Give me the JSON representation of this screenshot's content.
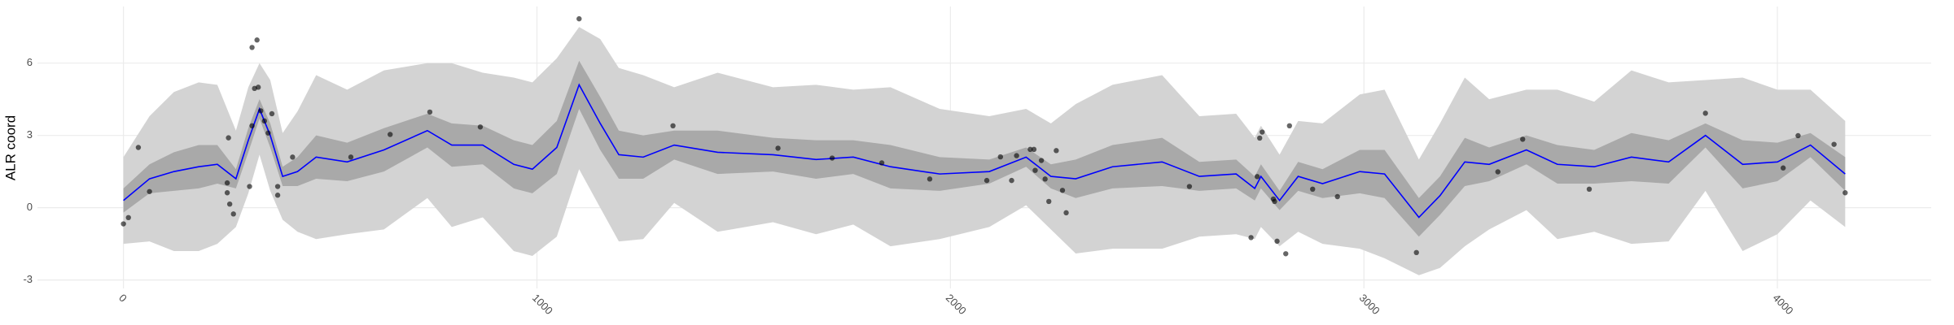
{
  "chart_data": {
    "type": "gp-fit",
    "y_label": "ALR coord",
    "xlim": [
      -208,
      4372
    ],
    "ylim": [
      -3.35,
      8.35
    ],
    "xticks": [
      0,
      1000,
      2000,
      3000,
      4000
    ],
    "yticks": [
      -3,
      0,
      3,
      6
    ],
    "grid": true,
    "x": [
      0,
      63,
      122,
      182,
      227,
      272,
      302,
      329,
      355,
      385,
      421,
      466,
      541,
      630,
      735,
      794,
      869,
      944,
      989,
      1048,
      1102,
      1153,
      1198,
      1257,
      1332,
      1437,
      1571,
      1675,
      1765,
      1855,
      1974,
      2094,
      2183,
      2243,
      2303,
      2392,
      2512,
      2602,
      2691,
      2736,
      2751,
      2796,
      2841,
      2900,
      2990,
      3050,
      3133,
      3184,
      3244,
      3303,
      3393,
      3468,
      3557,
      3647,
      3737,
      3826,
      3916,
      4000,
      4080,
      4164
    ],
    "bands": [
      {
        "color": "#d3d3d3",
        "lower": [
          -1.5,
          -1.4,
          -1.8,
          -1.8,
          -1.5,
          -0.8,
          0.6,
          2.2,
          0.7,
          -0.5,
          -1.0,
          -1.3,
          -1.1,
          -0.9,
          0.4,
          -0.8,
          -0.4,
          -1.8,
          -2.0,
          -1.2,
          1.6,
          0.0,
          -1.4,
          -1.3,
          0.2,
          -1.0,
          -0.6,
          -1.1,
          -0.7,
          -1.6,
          -1.3,
          -0.8,
          0.1,
          -0.9,
          -1.9,
          -1.7,
          -1.7,
          -1.2,
          -1.1,
          -1.3,
          -0.8,
          -1.6,
          -1.0,
          -1.5,
          -1.7,
          -2.1,
          -2.8,
          -2.5,
          -1.6,
          -0.9,
          -0.1,
          -1.3,
          -1.0,
          -1.5,
          -1.4,
          0.7,
          -1.8,
          -1.1,
          0.3,
          -0.8
        ],
        "upper": [
          2.1,
          3.8,
          4.8,
          5.2,
          5.1,
          3.2,
          5.0,
          6.0,
          5.3,
          3.1,
          4.0,
          5.5,
          4.9,
          5.7,
          6.0,
          6.0,
          5.6,
          5.4,
          5.2,
          6.2,
          7.5,
          7.0,
          5.8,
          5.5,
          5.0,
          5.6,
          5.0,
          5.1,
          4.9,
          5.0,
          4.1,
          3.8,
          4.1,
          3.5,
          4.3,
          5.1,
          5.5,
          3.8,
          3.9,
          2.9,
          3.4,
          2.2,
          3.6,
          3.5,
          4.7,
          4.9,
          2.0,
          3.5,
          5.4,
          4.5,
          4.9,
          4.9,
          4.4,
          5.7,
          5.2,
          5.3,
          5.4,
          4.9,
          4.9,
          3.6
        ]
      },
      {
        "color": "#a9a9a9",
        "lower": [
          -0.2,
          0.6,
          0.7,
          0.8,
          1.0,
          0.8,
          2.3,
          3.7,
          2.5,
          0.9,
          0.9,
          1.2,
          1.1,
          1.5,
          2.5,
          1.7,
          1.8,
          0.8,
          0.6,
          1.4,
          4.1,
          2.4,
          1.2,
          1.2,
          2.0,
          1.4,
          1.5,
          1.2,
          1.4,
          0.8,
          0.7,
          1.0,
          1.7,
          0.8,
          0.4,
          0.8,
          0.9,
          0.7,
          0.8,
          0.3,
          0.8,
          -0.1,
          0.7,
          0.4,
          0.6,
          0.4,
          -1.2,
          -0.3,
          0.9,
          1.1,
          1.8,
          1.0,
          1.0,
          1.1,
          1.0,
          2.5,
          0.8,
          1.1,
          2.1,
          0.7
        ],
        "upper": [
          0.8,
          1.8,
          2.3,
          2.6,
          2.6,
          1.6,
          3.3,
          4.5,
          3.5,
          1.7,
          2.1,
          3.0,
          2.7,
          3.3,
          3.9,
          3.5,
          3.4,
          2.8,
          2.6,
          3.6,
          6.1,
          4.6,
          3.2,
          3.0,
          3.2,
          3.2,
          2.9,
          2.8,
          2.8,
          2.6,
          2.1,
          2.0,
          2.5,
          1.8,
          2.0,
          2.6,
          2.9,
          1.9,
          2.0,
          1.3,
          1.8,
          0.7,
          1.9,
          1.6,
          2.4,
          2.4,
          0.4,
          1.3,
          2.9,
          2.5,
          3.0,
          2.6,
          2.4,
          3.1,
          2.8,
          3.5,
          2.8,
          2.7,
          3.1,
          2.1
        ]
      }
    ],
    "mean": {
      "color": "#0000ff",
      "values": [
        0.3,
        1.2,
        1.5,
        1.7,
        1.8,
        1.2,
        2.8,
        4.1,
        3.0,
        1.3,
        1.5,
        2.1,
        1.9,
        2.4,
        3.2,
        2.6,
        2.6,
        1.8,
        1.6,
        2.5,
        5.1,
        3.5,
        2.2,
        2.1,
        2.6,
        2.3,
        2.2,
        2.0,
        2.1,
        1.7,
        1.4,
        1.5,
        2.1,
        1.3,
        1.2,
        1.7,
        1.9,
        1.3,
        1.4,
        0.8,
        1.3,
        0.3,
        1.3,
        1.0,
        1.5,
        1.4,
        -0.4,
        0.5,
        1.9,
        1.8,
        2.4,
        1.8,
        1.7,
        2.1,
        1.9,
        3.0,
        1.8,
        1.9,
        2.6,
        1.4
      ]
    },
    "points": {
      "color": "#000000",
      "x": [
        0,
        12,
        36,
        63,
        251,
        251,
        254,
        257,
        266,
        305,
        311,
        311,
        317,
        323,
        326,
        332,
        341,
        350,
        359,
        373,
        373,
        409,
        550,
        645,
        741,
        863,
        1102,
        1329,
        1583,
        1714,
        1834,
        1950,
        2088,
        2121,
        2148,
        2160,
        2193,
        2202,
        2205,
        2220,
        2229,
        2238,
        2256,
        2271,
        2280,
        2578,
        2727,
        2742,
        2748,
        2754,
        2781,
        2784,
        2790,
        2811,
        2820,
        2876,
        2936,
        3127,
        3324,
        3384,
        3545,
        3826,
        4014,
        4050,
        4137,
        4164
      ],
      "y": [
        -0.67,
        -0.41,
        2.5,
        0.67,
        1.03,
        0.62,
        2.9,
        0.15,
        -0.26,
        0.88,
        3.4,
        6.65,
        4.95,
        6.96,
        5.0,
        4.02,
        3.6,
        3.1,
        3.9,
        0.88,
        0.52,
        2.1,
        2.1,
        3.04,
        3.97,
        3.35,
        7.84,
        3.4,
        2.47,
        2.06,
        1.86,
        1.19,
        1.13,
        2.11,
        1.13,
        2.16,
        2.42,
        2.42,
        1.55,
        1.96,
        1.19,
        0.26,
        2.37,
        0.72,
        -0.21,
        0.88,
        -1.24,
        1.29,
        2.89,
        3.14,
        0.36,
        0.26,
        -1.39,
        -1.91,
        3.4,
        0.77,
        0.46,
        -1.86,
        1.49,
        2.84,
        0.77,
        3.92,
        1.65,
        2.99,
        2.63,
        0.62
      ]
    }
  }
}
